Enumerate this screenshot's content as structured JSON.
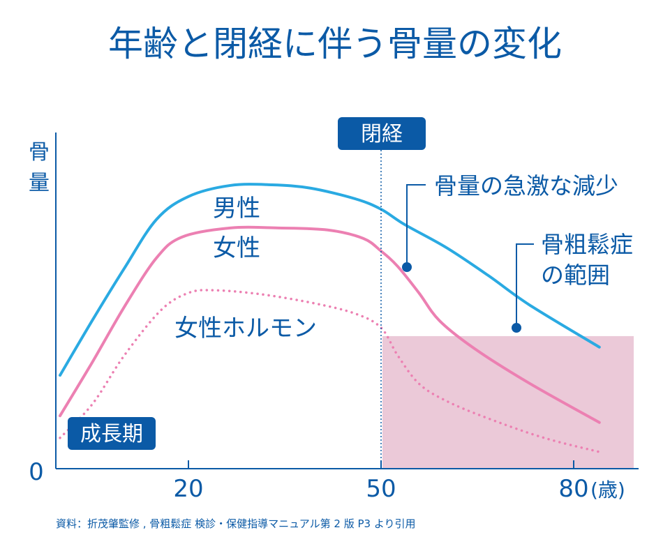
{
  "title": "年齢と閉経に伴う骨量の変化",
  "source": "資料：折茂肇監修 , 骨粗鬆症 検診・保健指導マニュアル第 2 版 P3 より引用",
  "colors": {
    "text": "#0b5aa6",
    "male": "#2aaae2",
    "female": "#ec80b2",
    "osteoporosis_region": "#ebc9d8",
    "label_box": "#0b5aa6"
  },
  "chart_data": {
    "type": "line",
    "title": "年齢と閉経に伴う骨量の変化",
    "xlabel": "(歳)",
    "ylabel": "骨量",
    "y_origin_label": "0",
    "x_ticks": [
      20,
      50,
      80
    ],
    "x_tick_labels": [
      "20",
      "50",
      "80"
    ],
    "xlim": [
      0,
      90
    ],
    "ylim": [
      0,
      100
    ],
    "grid": false,
    "series": [
      {
        "name": "男性",
        "style": "solid",
        "color": "#2aaae2",
        "x": [
          0,
          5,
          10,
          15,
          20,
          26.5,
          33,
          39,
          46,
          50,
          53.7,
          60.2,
          66.7,
          73.2,
          84
        ],
        "y": [
          27.9,
          44.2,
          59.8,
          74.4,
          81.3,
          84.6,
          84.8,
          83.8,
          80.6,
          77.5,
          72.9,
          66.0,
          57.7,
          48.8,
          36.3
        ]
      },
      {
        "name": "女性",
        "style": "solid",
        "color": "#ec80b2",
        "x": [
          0,
          5,
          10,
          15,
          19,
          26.5,
          34,
          41.7,
          47.2,
          50,
          52.6,
          55.9,
          59.1,
          64.6,
          73.2,
          84
        ],
        "y": [
          15.8,
          31.7,
          48.3,
          62.9,
          69.2,
          71.9,
          71.9,
          71.3,
          68.8,
          65,
          60.4,
          52.5,
          44.2,
          35.8,
          25.4,
          13.8
        ]
      },
      {
        "name": "女性ホルモン",
        "style": "dotted",
        "color": "#ec80b2",
        "x": [
          0,
          5,
          10,
          15.7,
          20,
          24,
          31.3,
          39.6,
          46,
          50,
          52.6,
          55.9,
          60.2,
          66.7,
          75.4,
          84
        ],
        "y": [
          9.2,
          19.2,
          33.8,
          47.3,
          52.5,
          53.3,
          52.1,
          49.4,
          46.3,
          42.1,
          33.8,
          25.4,
          20.2,
          15,
          9.2,
          5
        ]
      }
    ],
    "annotations": {
      "menopause": {
        "label": "閉経",
        "x": 50
      },
      "growth_period": {
        "label": "成長期"
      },
      "rapid_loss": {
        "label": "骨量の急激な減少"
      },
      "osteoporosis": {
        "label_line1": "骨粗鬆症",
        "label_line2": "の範囲",
        "x_from": 50,
        "y_below": 39.6
      }
    }
  }
}
